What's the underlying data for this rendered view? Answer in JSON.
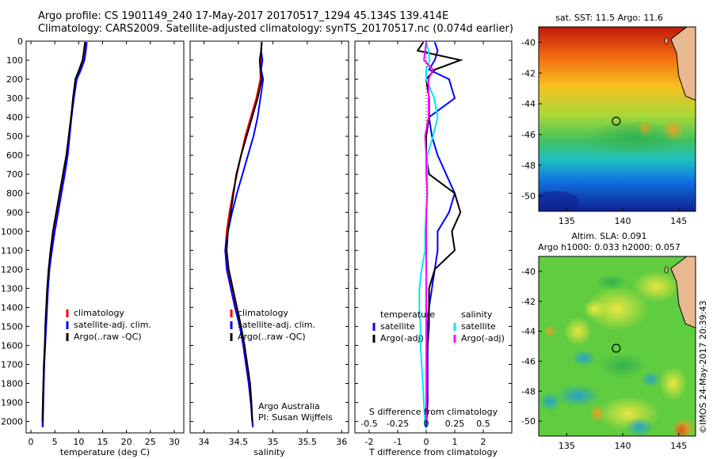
{
  "header": {
    "line1": "Argo profile: CS 1901149_240 17-May-2017 20170517_1294 45.134S 139.414E",
    "line2": "Climatology: CARS2009. Satellite-adjusted climatology: synTS_20170517.nc (0.074d earlier)"
  },
  "colors": {
    "climatology": "#ff0000",
    "satellite": "#0000ff",
    "argo": "#000000",
    "satellite_salinity": "#00e5ff",
    "argo_salinity": "#ff00ff"
  },
  "chart_data": [
    {
      "type": "line",
      "name": "temperature-profile",
      "xlabel": "temperature (deg C)",
      "ylabel": "",
      "xlim": [
        -1,
        32
      ],
      "ylim": [
        2060,
        0
      ],
      "xticks": [
        0,
        5,
        10,
        15,
        20,
        25,
        30
      ],
      "yticks": [
        0,
        100,
        200,
        300,
        400,
        500,
        600,
        700,
        800,
        900,
        1000,
        1100,
        1200,
        1300,
        1400,
        1500,
        1600,
        1700,
        1800,
        1900,
        2000
      ],
      "legend": [
        "climatology",
        "satellite-adj. clim.",
        "Argo(..raw -QC)"
      ],
      "series": [
        {
          "name": "climatology",
          "color": "#ff0000",
          "depth": [
            5,
            50,
            100,
            150,
            200,
            300,
            400,
            500,
            600,
            700,
            800,
            900,
            1000,
            1100,
            1200,
            1300,
            1400,
            1500,
            1600,
            1700,
            1800,
            1900,
            2030
          ],
          "values": [
            11.4,
            11.2,
            10.9,
            10.3,
            9.4,
            8.9,
            8.4,
            8.0,
            7.6,
            7.0,
            6.3,
            5.6,
            4.9,
            4.3,
            3.8,
            3.5,
            3.3,
            3.1,
            2.9,
            2.8,
            2.6,
            2.5,
            2.4
          ]
        },
        {
          "name": "satellite-adj. clim.",
          "color": "#0000ff",
          "depth": [
            5,
            50,
            100,
            150,
            200,
            300,
            400,
            500,
            600,
            700,
            800,
            900,
            1000,
            1100,
            1200,
            1300,
            1400,
            1500,
            1600,
            1700,
            1800,
            1900,
            2030
          ],
          "values": [
            11.7,
            11.5,
            11.2,
            10.5,
            9.6,
            9.0,
            8.5,
            8.1,
            7.7,
            7.1,
            6.4,
            5.7,
            5.0,
            4.4,
            3.9,
            3.6,
            3.4,
            3.2,
            3.0,
            2.8,
            2.7,
            2.6,
            2.5
          ]
        },
        {
          "name": "Argo(..raw -QC)",
          "color": "#000000",
          "depth": [
            5,
            50,
            100,
            150,
            200,
            300,
            400,
            500,
            600,
            700,
            800,
            900,
            1000,
            1100,
            1200,
            1300,
            1400,
            1500,
            1600,
            1700,
            1800,
            1900,
            2000
          ],
          "values": [
            11.3,
            11.1,
            10.8,
            10.1,
            9.3,
            8.8,
            8.4,
            7.9,
            7.4,
            6.7,
            6.0,
            5.3,
            4.6,
            4.1,
            3.7,
            3.4,
            3.2,
            3.0,
            2.9,
            2.7,
            2.6,
            2.5,
            2.4
          ]
        }
      ]
    },
    {
      "type": "line",
      "name": "salinity-profile",
      "xlabel": "salinity",
      "xlim": [
        33.8,
        36.1
      ],
      "ylim": [
        2060,
        0
      ],
      "xticks": [
        34,
        34.5,
        35,
        35.5,
        36
      ],
      "legend": [
        "climatology",
        "satellite-adj. clim.",
        "Argo(..raw -QC)"
      ],
      "annotation": [
        "Argo Australia",
        "PI: Susan Wijffels"
      ],
      "series": [
        {
          "name": "climatology",
          "color": "#ff0000",
          "depth": [
            5,
            50,
            100,
            150,
            200,
            300,
            400,
            500,
            600,
            700,
            800,
            900,
            1000,
            1100,
            1200,
            1300,
            1400,
            1500,
            1600,
            1700,
            1800,
            1900,
            2030
          ],
          "values": [
            34.84,
            34.83,
            34.83,
            34.82,
            34.82,
            34.76,
            34.68,
            34.6,
            34.54,
            34.48,
            34.42,
            34.37,
            34.33,
            34.31,
            34.35,
            34.41,
            34.47,
            34.53,
            34.58,
            34.62,
            34.66,
            34.69,
            34.71
          ]
        },
        {
          "name": "satellite-adj. clim.",
          "color": "#0000ff",
          "depth": [
            5,
            50,
            100,
            150,
            200,
            300,
            400,
            500,
            600,
            700,
            800,
            900,
            1000,
            1100,
            1200,
            1300,
            1400,
            1500,
            1600,
            1700,
            1800,
            1900,
            2030
          ],
          "values": [
            34.84,
            34.83,
            34.85,
            34.83,
            34.86,
            34.82,
            34.78,
            34.72,
            34.64,
            34.56,
            34.48,
            34.41,
            34.35,
            34.31,
            34.33,
            34.39,
            34.45,
            34.52,
            34.57,
            34.61,
            34.65,
            34.68,
            34.71
          ]
        },
        {
          "name": "Argo(..raw -QC)",
          "color": "#000000",
          "depth": [
            5,
            50,
            100,
            150,
            200,
            300,
            400,
            500,
            600,
            700,
            800,
            900,
            1000,
            1100,
            1200,
            1300,
            1400,
            1500,
            1600,
            1700,
            1800,
            1900,
            2000
          ],
          "values": [
            34.84,
            34.83,
            34.81,
            34.82,
            34.84,
            34.78,
            34.7,
            34.62,
            34.54,
            34.47,
            34.43,
            34.39,
            34.35,
            34.33,
            34.36,
            34.42,
            34.48,
            34.54,
            34.59,
            34.63,
            34.67,
            34.69,
            34.7
          ]
        }
      ]
    },
    {
      "type": "line",
      "name": "difference-profile",
      "xlabel": "T difference from climatology",
      "xlabel_top": "S difference from climatology",
      "xlim": [
        -2.5,
        3
      ],
      "ylim": [
        2060,
        0
      ],
      "xticks": [
        -2,
        -1,
        0,
        1,
        2
      ],
      "xticks_s": [
        -0.5,
        -0.25,
        0,
        0.25,
        0.5
      ],
      "xticks_s_labels": [
        "-0.5",
        "-0.25",
        "0",
        "0.25",
        "0.5"
      ],
      "legend": {
        "temperature_title": "temperature",
        "salinity_title": "salinity",
        "items": [
          "satellite",
          "Argo(-adj)",
          "satellite",
          "Argo(-adj)"
        ]
      },
      "series": [
        {
          "name": "T satellite",
          "color": "#0000ff",
          "depth": [
            5,
            50,
            100,
            150,
            200,
            300,
            400,
            500,
            600,
            700,
            800,
            900,
            1000,
            1100,
            1200,
            1300,
            1400,
            1500,
            1600,
            1700,
            1800,
            1900,
            2030
          ],
          "values": [
            0.3,
            0.4,
            0.3,
            0.1,
            0.8,
            1.0,
            0.1,
            0.2,
            0.4,
            0.7,
            1.0,
            0.8,
            0.4,
            0.4,
            0.3,
            0.2,
            0.1,
            0.1,
            0.05,
            0.05,
            0.05,
            0.05,
            0.0
          ]
        },
        {
          "name": "T Argo(-adj)",
          "color": "#000000",
          "depth": [
            5,
            50,
            100,
            150,
            200,
            300,
            400,
            500,
            600,
            700,
            800,
            900,
            1000,
            1100,
            1200,
            1300,
            1400,
            1500,
            1600,
            1700,
            1800,
            1900,
            2000
          ],
          "values": [
            -0.1,
            -0.3,
            1.2,
            0.3,
            0.0,
            0.1,
            0.1,
            0.0,
            0.0,
            0.1,
            1.0,
            1.2,
            0.9,
            1.0,
            0.3,
            0.1,
            0.1,
            0.05,
            0.05,
            0.0,
            0.0,
            0.0,
            0.0
          ]
        },
        {
          "name": "S satellite",
          "color": "#00e5ff",
          "depth": [
            5,
            50,
            100,
            150,
            200,
            300,
            400,
            500,
            600,
            700,
            800,
            900,
            1000,
            1100,
            1200,
            1300,
            1400,
            1500,
            1600,
            1700,
            1800,
            1900,
            2030
          ],
          "values": [
            0.0,
            0.02,
            0.03,
            0.0,
            0.0,
            0.07,
            0.1,
            0.06,
            0.01,
            0.01,
            0.01,
            0.0,
            -0.01,
            -0.01,
            -0.04,
            -0.06,
            -0.06,
            -0.05,
            -0.05,
            -0.04,
            -0.03,
            -0.02,
            -0.01
          ]
        },
        {
          "name": "S Argo(-adj)",
          "color": "#ff00ff",
          "depth": [
            5,
            50,
            100,
            150,
            200,
            300,
            400,
            500,
            600,
            700,
            800,
            900,
            1000,
            1100,
            1200,
            1300,
            1400,
            1500,
            1600,
            1700,
            1800,
            1900,
            2000
          ],
          "values": [
            0.0,
            -0.01,
            -0.02,
            0.06,
            0.02,
            0.02,
            0.02,
            -0.01,
            0.0,
            0.0,
            0.01,
            0.0,
            0.0,
            0.0,
            0.0,
            0.0,
            0.0,
            0.0,
            0.0,
            0.0,
            0.0,
            0.0,
            0.0
          ]
        }
      ]
    },
    {
      "type": "heatmap",
      "name": "sst-map",
      "title": "sat. SST: 11.5  Argo: 11.6",
      "xlim": [
        132.5,
        146.5
      ],
      "ylim": [
        -51,
        -39
      ],
      "xticks": [
        135,
        140,
        145
      ],
      "yticks": [
        -40,
        -42,
        -44,
        -46,
        -48,
        -50
      ],
      "xtick_labels": [
        "135",
        "140",
        "145"
      ],
      "ytick_labels": [
        "-40",
        "-42",
        "-44",
        "-46",
        "-48",
        "-50"
      ],
      "marker": {
        "lon": 139.414,
        "lat": -45.134
      }
    },
    {
      "type": "heatmap",
      "name": "sla-map",
      "title_lines": [
        "Altim. SLA: 0.091",
        "Argo h1000: 0.033  h2000: 0.057"
      ],
      "xlim": [
        132.5,
        146.5
      ],
      "ylim": [
        -51,
        -39
      ],
      "xticks": [
        135,
        140,
        145
      ],
      "yticks": [
        -40,
        -42,
        -44,
        -46,
        -48,
        -50
      ],
      "xtick_labels": [
        "135",
        "140",
        "145"
      ],
      "ytick_labels": [
        "-40",
        "-42",
        "-44",
        "-46",
        "-48",
        "-50"
      ],
      "marker": {
        "lon": 139.414,
        "lat": -45.134
      },
      "stamp": "©IMOS 24-May-2017 20:39:43"
    }
  ]
}
